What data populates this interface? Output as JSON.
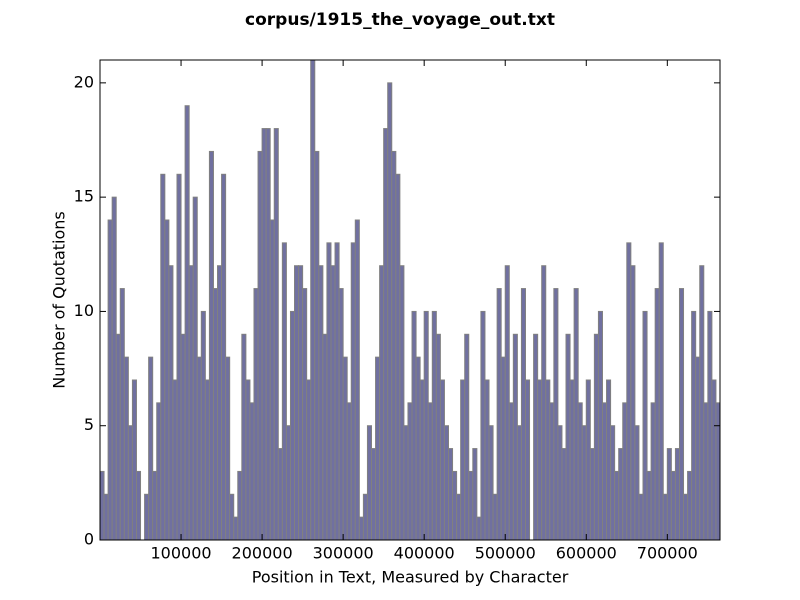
{
  "chart_data": {
    "type": "histogram",
    "title": "corpus/1915_the_voyage_out.txt",
    "xlabel": "Position in Text, Measured by Character",
    "ylabel": "Number of Quotations",
    "color": "#7070a0",
    "edgecolor": "#808080",
    "bins": [
      0,
      5000,
      10000,
      15000,
      20000,
      25000,
      30000,
      35000,
      40000,
      45000,
      50000,
      55000,
      60000,
      65000,
      70000,
      75000,
      80000,
      85000,
      90000,
      95000,
      100000,
      105000,
      110000,
      115000,
      120000,
      125000,
      130000,
      135000,
      140000,
      145000,
      150000,
      155000,
      160000,
      165000,
      170000,
      175000,
      180000,
      185000,
      190000,
      195000,
      200000,
      205000,
      210000,
      215000,
      220000,
      225000,
      230000,
      235000,
      240000,
      245000,
      250000,
      255000,
      260000,
      265000,
      270000,
      275000,
      280000,
      285000,
      290000,
      295000,
      300000,
      305000,
      310000,
      315000,
      320000,
      325000,
      330000,
      335000,
      340000,
      345000,
      350000,
      355000,
      360000,
      365000,
      370000,
      375000,
      380000,
      385000,
      390000,
      395000,
      400000,
      405000,
      410000,
      415000,
      420000,
      425000,
      430000,
      435000,
      440000,
      445000,
      450000,
      455000,
      460000,
      465000,
      470000,
      475000,
      480000,
      485000,
      490000,
      495000,
      500000,
      505000,
      510000,
      515000,
      520000,
      525000,
      530000,
      535000,
      540000,
      545000,
      550000,
      555000,
      560000,
      565000,
      570000,
      575000,
      580000,
      585000,
      590000,
      595000,
      600000,
      605000,
      610000,
      615000,
      620000,
      625000,
      630000,
      635000,
      640000,
      645000,
      650000,
      655000,
      660000,
      665000,
      670000,
      675000,
      680000,
      685000,
      690000,
      695000,
      700000,
      705000,
      710000,
      715000,
      720000,
      725000,
      730000,
      735000,
      740000,
      745000,
      750000,
      755000,
      760000,
      765000
    ],
    "values": [
      3,
      2,
      14,
      15,
      9,
      11,
      8,
      5,
      7,
      3,
      0,
      2,
      8,
      3,
      6,
      16,
      14,
      12,
      7,
      16,
      9,
      19,
      12,
      15,
      8,
      10,
      7,
      17,
      11,
      12,
      16,
      8,
      2,
      1,
      3,
      9,
      7,
      6,
      11,
      17,
      18,
      18,
      14,
      18,
      4,
      13,
      5,
      10,
      12,
      12,
      11,
      7,
      21,
      17,
      12,
      9,
      13,
      12,
      13,
      11,
      8,
      6,
      13,
      14,
      1,
      2,
      5,
      4,
      8,
      12,
      18,
      20,
      17,
      16,
      12,
      5,
      6,
      10,
      8,
      7,
      10,
      6,
      10,
      9,
      7,
      5,
      4,
      3,
      2,
      7,
      9,
      3,
      4,
      1,
      10,
      7,
      5,
      2,
      11,
      8,
      12,
      6,
      9,
      5,
      11,
      7,
      0,
      9,
      7,
      12,
      7,
      6,
      11,
      5,
      4,
      9,
      7,
      11,
      6,
      5,
      7,
      4,
      9,
      10,
      6,
      7,
      5,
      3,
      4,
      6,
      13,
      12,
      5,
      2,
      10,
      3,
      6,
      11,
      13,
      2,
      4,
      3,
      4,
      11,
      2,
      3,
      10,
      8,
      12,
      6,
      10,
      7,
      6
    ],
    "xlim": [
      0,
      765000
    ],
    "ylim": [
      0,
      21
    ],
    "xticks": [
      100000,
      200000,
      300000,
      400000,
      500000,
      600000,
      700000
    ],
    "yticks": [
      0,
      5,
      10,
      15,
      20
    ]
  }
}
